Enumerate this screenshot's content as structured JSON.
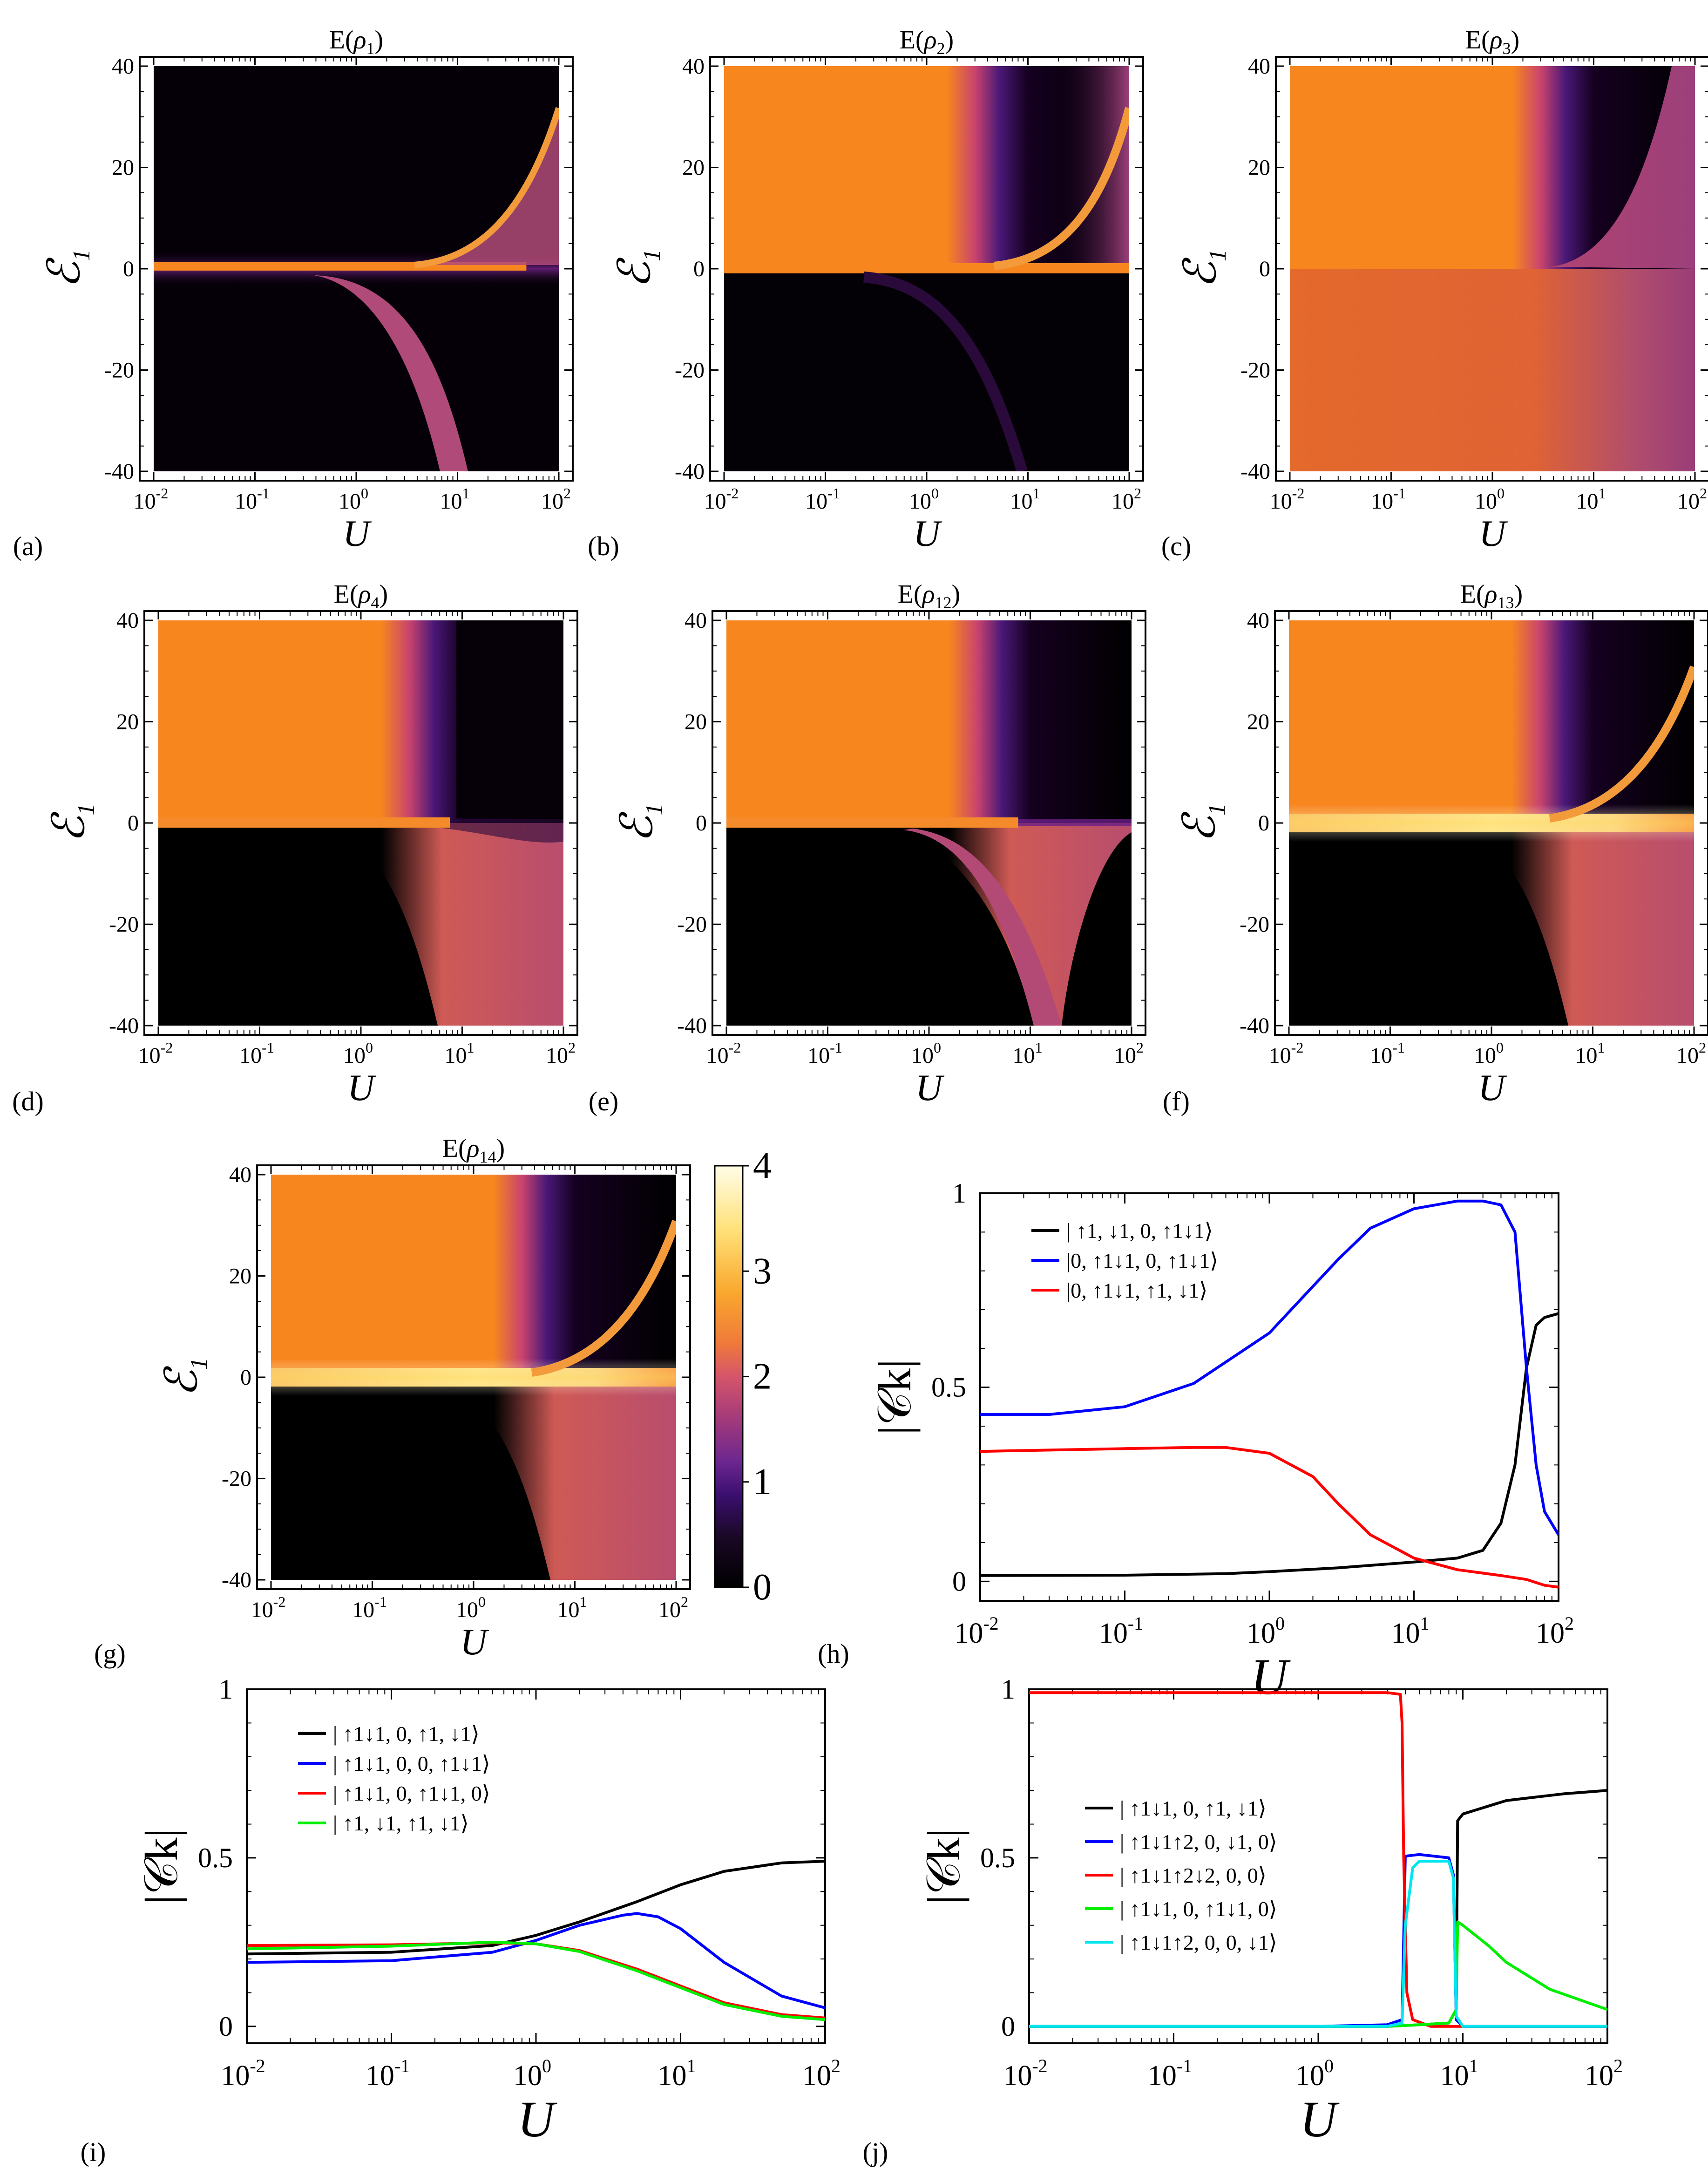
{
  "colors": {
    "colormap": [
      "#000000",
      "#1a0826",
      "#3b0f70",
      "#6d2790",
      "#a33a7a",
      "#d5556a",
      "#f07a3a",
      "#f9a82e",
      "#ffe27a",
      "#fffde8"
    ],
    "black": "#000000",
    "blue": "#0000ff",
    "red": "#ff0000",
    "green": "#00ee00",
    "cyan": "#00e5ee"
  },
  "panels": [
    {
      "label": "(a)",
      "title": "E(ρ1)",
      "title_main": "E(",
      "title_sym": "ρ",
      "title_sub": "1",
      "title_close": ")",
      "ylabel": "ℰ",
      "ysub": "1",
      "xlabel": "U",
      "yticks": [
        "40",
        "20",
        "0",
        "-20",
        "-40"
      ],
      "xticks": [
        "10",
        "10",
        "10",
        "10",
        "10"
      ],
      "xexps": [
        "-2",
        "-1",
        "0",
        "1",
        "2"
      ]
    },
    {
      "label": "(b)",
      "title": "E(ρ2)",
      "title_main": "E(",
      "title_sym": "ρ",
      "title_sub": "2",
      "title_close": ")",
      "ylabel": "ℰ",
      "ysub": "1",
      "xlabel": "U",
      "yticks": [
        "40",
        "20",
        "0",
        "-20",
        "-40"
      ],
      "xticks": [
        "10",
        "10",
        "10",
        "10",
        "10"
      ],
      "xexps": [
        "-2",
        "-1",
        "0",
        "1",
        "2"
      ]
    },
    {
      "label": "(c)",
      "title": "E(ρ3)",
      "title_main": "E(",
      "title_sym": "ρ",
      "title_sub": "3",
      "title_close": ")",
      "ylabel": "ℰ",
      "ysub": "1",
      "xlabel": "U",
      "yticks": [
        "40",
        "20",
        "0",
        "-20",
        "-40"
      ],
      "xticks": [
        "10",
        "10",
        "10",
        "10",
        "10"
      ],
      "xexps": [
        "-2",
        "-1",
        "0",
        "1",
        "2"
      ]
    },
    {
      "label": "(d)",
      "title": "E(ρ4)",
      "title_main": "E(",
      "title_sym": "ρ",
      "title_sub": "4",
      "title_close": ")",
      "ylabel": "ℰ",
      "ysub": "1",
      "xlabel": "U",
      "yticks": [
        "40",
        "20",
        "0",
        "-20",
        "-40"
      ],
      "xticks": [
        "10",
        "10",
        "10",
        "10",
        "10"
      ],
      "xexps": [
        "-2",
        "-1",
        "0",
        "1",
        "2"
      ]
    },
    {
      "label": "(e)",
      "title": "E(ρ12)",
      "title_main": "E(",
      "title_sym": "ρ",
      "title_sub": "12",
      "title_close": ")",
      "ylabel": "ℰ",
      "ysub": "1",
      "xlabel": "U",
      "yticks": [
        "40",
        "20",
        "0",
        "-20",
        "-40"
      ],
      "xticks": [
        "10",
        "10",
        "10",
        "10",
        "10"
      ],
      "xexps": [
        "-2",
        "-1",
        "0",
        "1",
        "2"
      ]
    },
    {
      "label": "(f)",
      "title": "E(ρ13)",
      "title_main": "E(",
      "title_sym": "ρ",
      "title_sub": "13",
      "title_close": ")",
      "ylabel": "ℰ",
      "ysub": "1",
      "xlabel": "U",
      "yticks": [
        "40",
        "20",
        "0",
        "-20",
        "-40"
      ],
      "xticks": [
        "10",
        "10",
        "10",
        "10",
        "10"
      ],
      "xexps": [
        "-2",
        "-1",
        "0",
        "1",
        "2"
      ]
    },
    {
      "label": "(g)",
      "title": "E(ρ14)",
      "title_main": "E(",
      "title_sym": "ρ",
      "title_sub": "14",
      "title_close": ")",
      "ylabel": "ℰ",
      "ysub": "1",
      "xlabel": "U",
      "yticks": [
        "40",
        "20",
        "0",
        "-20",
        "-40"
      ],
      "xticks": [
        "10",
        "10",
        "10",
        "10",
        "10"
      ],
      "xexps": [
        "-2",
        "-1",
        "0",
        "1",
        "2"
      ]
    }
  ],
  "colorbar": {
    "ticks": [
      "4",
      "3",
      "2",
      "1",
      "0"
    ],
    "range": [
      0,
      4
    ]
  },
  "line_panels": [
    {
      "label": "(h)",
      "ylabel": "|𝒞k|",
      "xlabel": "U",
      "yticks": [
        "1",
        "0.5",
        "0"
      ],
      "xticks": [
        "10",
        "10",
        "10",
        "10",
        "10"
      ],
      "xexps": [
        "-2",
        "-1",
        "0",
        "1",
        "2"
      ],
      "legend": [
        "| ↑1, ↓1, 0, ↑1↓1⟩",
        "|0, ↑1↓1, 0, ↑1↓1⟩",
        "|0, ↑1↓1, ↑1, ↓1⟩"
      ]
    },
    {
      "label": "(i)",
      "ylabel": "|𝒞k|",
      "xlabel": "U",
      "yticks": [
        "1",
        "0.5",
        "0"
      ],
      "xticks": [
        "10",
        "10",
        "10",
        "10",
        "10"
      ],
      "xexps": [
        "-2",
        "-1",
        "0",
        "1",
        "2"
      ],
      "legend": [
        "| ↑1↓1, 0, ↑1, ↓1⟩",
        "| ↑1↓1, 0, 0, ↑1↓1⟩",
        "| ↑1↓1, 0, ↑1↓1, 0⟩",
        "| ↑1, ↓1, ↑1, ↓1⟩"
      ]
    },
    {
      "label": "(j)",
      "ylabel": "|𝒞k|",
      "xlabel": "U",
      "yticks": [
        "1",
        "0.5",
        "0"
      ],
      "xticks": [
        "10",
        "10",
        "10",
        "10",
        "10"
      ],
      "xexps": [
        "-2",
        "-1",
        "0",
        "1",
        "2"
      ],
      "legend": [
        "| ↑1↓1, 0, ↑1, ↓1⟩",
        "| ↑1↓1↑2, 0, ↓1, 0⟩",
        "| ↑1↓1↑2↓2, 0, 0⟩",
        "| ↑1↓1, 0, ↑1↓1, 0⟩",
        "| ↑1↓1↑2, 0, 0, ↓1⟩"
      ]
    }
  ],
  "chart_data": [
    {
      "type": "heatmap",
      "title": "E(ρ1)",
      "xlabel": "U",
      "ylabel": "ℰ1",
      "xscale": "log",
      "xlim": [
        0.01,
        100
      ],
      "ylim": [
        -40,
        40
      ],
      "zlim": [
        0,
        4
      ]
    },
    {
      "type": "heatmap",
      "title": "E(ρ2)",
      "xlabel": "U",
      "ylabel": "ℰ1",
      "xscale": "log",
      "xlim": [
        0.01,
        100
      ],
      "ylim": [
        -40,
        40
      ],
      "zlim": [
        0,
        4
      ]
    },
    {
      "type": "heatmap",
      "title": "E(ρ3)",
      "xlabel": "U",
      "ylabel": "ℰ1",
      "xscale": "log",
      "xlim": [
        0.01,
        100
      ],
      "ylim": [
        -40,
        40
      ],
      "zlim": [
        0,
        4
      ]
    },
    {
      "type": "heatmap",
      "title": "E(ρ4)",
      "xlabel": "U",
      "ylabel": "ℰ1",
      "xscale": "log",
      "xlim": [
        0.01,
        100
      ],
      "ylim": [
        -40,
        40
      ],
      "zlim": [
        0,
        4
      ]
    },
    {
      "type": "heatmap",
      "title": "E(ρ12)",
      "xlabel": "U",
      "ylabel": "ℰ1",
      "xscale": "log",
      "xlim": [
        0.01,
        100
      ],
      "ylim": [
        -40,
        40
      ],
      "zlim": [
        0,
        4
      ]
    },
    {
      "type": "heatmap",
      "title": "E(ρ13)",
      "xlabel": "U",
      "ylabel": "ℰ1",
      "xscale": "log",
      "xlim": [
        0.01,
        100
      ],
      "ylim": [
        -40,
        40
      ],
      "zlim": [
        0,
        4
      ]
    },
    {
      "type": "heatmap",
      "title": "E(ρ14)",
      "xlabel": "U",
      "ylabel": "ℰ1",
      "xscale": "log",
      "xlim": [
        0.01,
        100
      ],
      "ylim": [
        -40,
        40
      ],
      "zlim": [
        0,
        4
      ]
    },
    {
      "type": "line",
      "panel": "(h)",
      "xlabel": "U",
      "ylabel": "|Ck|",
      "xscale": "log",
      "xlim": [
        0.01,
        100
      ],
      "ylim": [
        -0.05,
        1.0
      ],
      "series": [
        {
          "name": "| ↑1, ↓1, 0, ↑1↓1⟩",
          "color": "#000000",
          "x": [
            0.01,
            0.1,
            0.5,
            1,
            3,
            10,
            20,
            30,
            40,
            50,
            60,
            70,
            80,
            100
          ],
          "y": [
            0.015,
            0.016,
            0.02,
            0.025,
            0.035,
            0.05,
            0.06,
            0.08,
            0.15,
            0.3,
            0.55,
            0.66,
            0.68,
            0.69
          ]
        },
        {
          "name": "|0, ↑1↓1, 0, ↑1↓1⟩",
          "color": "#0000ff",
          "x": [
            0.01,
            0.03,
            0.1,
            0.3,
            1,
            2,
            3,
            5,
            10,
            20,
            30,
            40,
            50,
            60,
            70,
            80,
            100
          ],
          "y": [
            0.43,
            0.43,
            0.45,
            0.51,
            0.64,
            0.76,
            0.83,
            0.91,
            0.96,
            0.98,
            0.98,
            0.97,
            0.9,
            0.55,
            0.3,
            0.18,
            0.12
          ]
        },
        {
          "name": "|0, ↑1↓1, ↑1, ↓1⟩",
          "color": "#ff0000",
          "x": [
            0.01,
            0.1,
            0.3,
            0.5,
            1,
            2,
            3,
            5,
            10,
            20,
            40,
            60,
            80,
            100
          ],
          "y": [
            0.335,
            0.342,
            0.345,
            0.345,
            0.33,
            0.27,
            0.2,
            0.12,
            0.06,
            0.03,
            0.015,
            0.005,
            -0.01,
            -0.015
          ]
        }
      ]
    },
    {
      "type": "line",
      "panel": "(i)",
      "xlabel": "U",
      "ylabel": "|Ck|",
      "xscale": "log",
      "xlim": [
        0.01,
        100
      ],
      "ylim": [
        -0.05,
        1.0
      ],
      "series": [
        {
          "name": "| ↑1↓1, 0, ↑1, ↓1⟩",
          "color": "#000000",
          "x": [
            0.01,
            0.1,
            0.5,
            1,
            2,
            5,
            10,
            20,
            50,
            100
          ],
          "y": [
            0.215,
            0.22,
            0.24,
            0.27,
            0.31,
            0.37,
            0.42,
            0.46,
            0.485,
            0.49
          ]
        },
        {
          "name": "| ↑1↓1, 0, 0, ↑1↓1⟩",
          "color": "#0000ff",
          "x": [
            0.01,
            0.1,
            0.5,
            1,
            2,
            4,
            5,
            7,
            10,
            20,
            50,
            100
          ],
          "y": [
            0.19,
            0.195,
            0.22,
            0.255,
            0.3,
            0.33,
            0.335,
            0.325,
            0.29,
            0.19,
            0.09,
            0.055
          ]
        },
        {
          "name": "| ↑1↓1, 0, ↑1↓1, 0⟩",
          "color": "#ff0000",
          "x": [
            0.01,
            0.1,
            0.5,
            1,
            2,
            5,
            10,
            20,
            50,
            100
          ],
          "y": [
            0.24,
            0.242,
            0.248,
            0.245,
            0.225,
            0.17,
            0.12,
            0.07,
            0.035,
            0.025
          ]
        },
        {
          "name": "| ↑1, ↓1, ↑1, ↓1⟩",
          "color": "#00ee00",
          "x": [
            0.01,
            0.1,
            0.5,
            1,
            2,
            5,
            10,
            20,
            50,
            100
          ],
          "y": [
            0.23,
            0.238,
            0.25,
            0.245,
            0.222,
            0.165,
            0.115,
            0.065,
            0.03,
            0.02
          ]
        }
      ]
    },
    {
      "type": "line",
      "panel": "(j)",
      "xlabel": "U",
      "ylabel": "|Ck|",
      "xscale": "log",
      "xlim": [
        0.01,
        100
      ],
      "ylim": [
        -0.05,
        1.0
      ],
      "series": [
        {
          "name": "| ↑1↓1, 0, ↑1, ↓1⟩",
          "color": "#000000",
          "x": [
            0.01,
            1,
            3,
            5,
            8,
            9,
            9.2,
            10,
            20,
            50,
            100
          ],
          "y": [
            0.0,
            0.0,
            0.0,
            0.005,
            0.01,
            0.05,
            0.61,
            0.63,
            0.67,
            0.69,
            0.7
          ]
        },
        {
          "name": "| ↑1↓1↑2, 0, ↓1, 0⟩",
          "color": "#0000ff",
          "x": [
            0.01,
            1,
            3,
            3.8,
            4.0,
            5,
            8,
            8.6,
            9,
            10,
            100
          ],
          "y": [
            0.0,
            0.0,
            0.005,
            0.02,
            0.505,
            0.51,
            0.5,
            0.45,
            0.02,
            0.0,
            0.0
          ]
        },
        {
          "name": "| ↑1↓1↑2↓2, 0, 0⟩",
          "color": "#ff0000",
          "x": [
            0.01,
            1,
            3,
            3.7,
            3.8,
            3.9,
            4.1,
            4.5,
            6,
            10,
            100
          ],
          "y": [
            0.99,
            0.99,
            0.99,
            0.985,
            0.9,
            0.5,
            0.1,
            0.02,
            0.0,
            0.0,
            0.0
          ]
        },
        {
          "name": "| ↑1↓1, 0, ↑1↓1, 0⟩",
          "color": "#00ee00",
          "x": [
            0.01,
            1,
            3,
            5,
            8,
            9,
            9.2,
            10,
            15,
            20,
            40,
            100
          ],
          "y": [
            0.0,
            0.0,
            0.0,
            0.005,
            0.01,
            0.05,
            0.31,
            0.3,
            0.24,
            0.19,
            0.11,
            0.05
          ]
        },
        {
          "name": "| ↑1↓1↑2, 0, 0, ↓1⟩",
          "color": "#00e5ee",
          "x": [
            0.01,
            1,
            3,
            3.8,
            4.0,
            4.5,
            5,
            8,
            8.6,
            9,
            10,
            100
          ],
          "y": [
            0.0,
            0.0,
            0.0,
            0.01,
            0.3,
            0.47,
            0.49,
            0.49,
            0.44,
            0.03,
            0.0,
            0.0
          ]
        }
      ]
    }
  ]
}
